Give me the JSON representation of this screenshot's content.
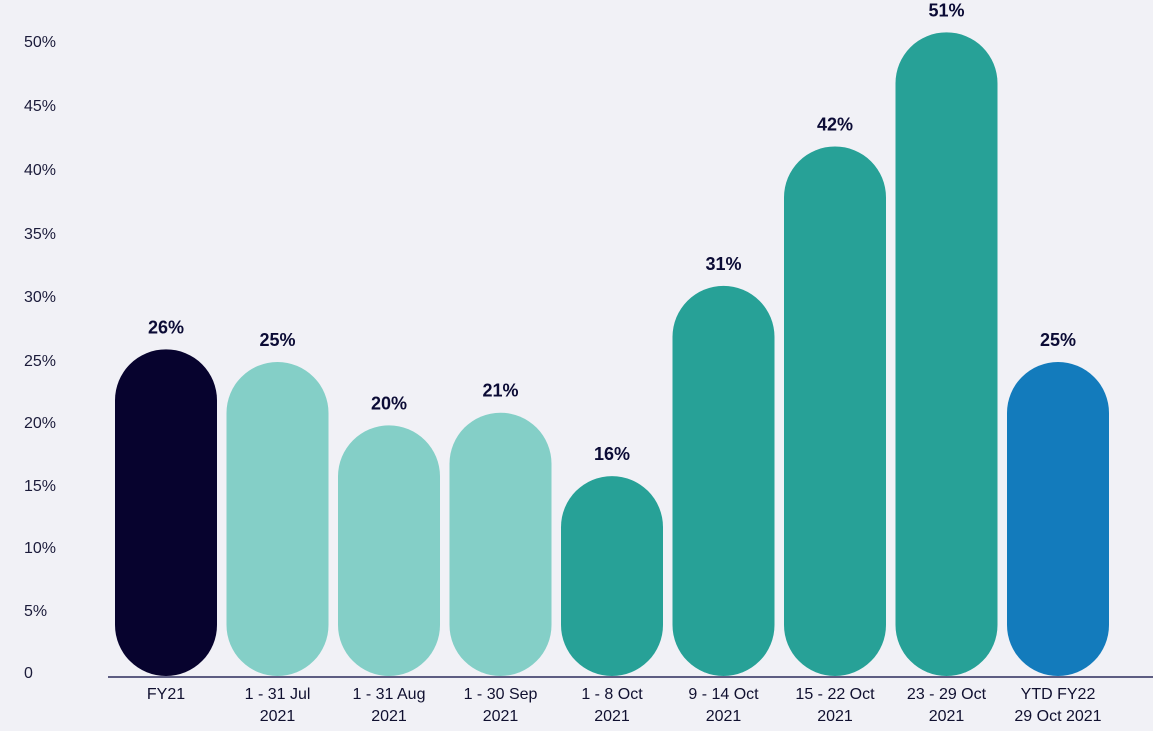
{
  "chart_data": {
    "type": "bar",
    "categories": [
      [
        "FY21"
      ],
      [
        "1 - 31  Jul",
        "2021"
      ],
      [
        "1 - 31 Aug",
        "2021"
      ],
      [
        "1 - 30 Sep",
        "2021"
      ],
      [
        "1 - 8 Oct",
        "2021"
      ],
      [
        "9 - 14 Oct",
        "2021"
      ],
      [
        "15 - 22 Oct",
        "2021"
      ],
      [
        "23 - 29 Oct",
        "2021"
      ],
      [
        "YTD FY22",
        "29 Oct 2021"
      ]
    ],
    "values": [
      26,
      25,
      20,
      21,
      16,
      31,
      42,
      51,
      25
    ],
    "data_labels": [
      "26%",
      "25%",
      "20%",
      "21%",
      "16%",
      "31%",
      "42%",
      "51%",
      "25%"
    ],
    "bar_colors": [
      "#07032e",
      "#84cfc7",
      "#84cfc7",
      "#84cfc7",
      "#27a197",
      "#27a197",
      "#27a197",
      "#27a197",
      "#137bbc"
    ],
    "y_ticks": [
      "0",
      "5%",
      "10%",
      "15%",
      "20%",
      "25%",
      "30%",
      "35%",
      "40%",
      "45%",
      "50%"
    ],
    "ylim": [
      0,
      50
    ],
    "grid": false,
    "legend": "none"
  }
}
